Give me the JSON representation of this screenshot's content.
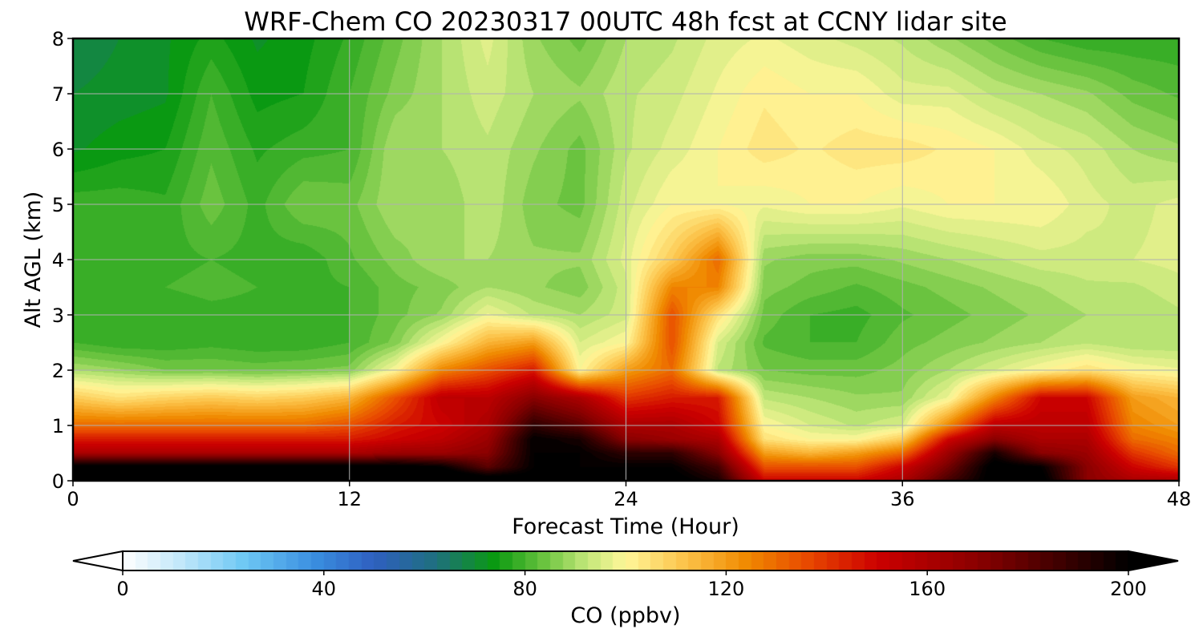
{
  "chart_data": {
    "type": "heatmap",
    "title": "WRF-Chem CO  20230317 00UTC 48h fcst at CCNY lidar site",
    "xlabel": "Forecast Time (Hour)",
    "ylabel": "Alt AGL (km)",
    "xlim": [
      0,
      48
    ],
    "ylim": [
      0,
      8
    ],
    "x_ticks": [
      "0",
      "12",
      "24",
      "36",
      "48"
    ],
    "y_ticks": [
      "0",
      "1",
      "2",
      "3",
      "4",
      "5",
      "6",
      "7",
      "8"
    ],
    "grid": true,
    "x_hours": [
      0,
      2,
      4,
      6,
      8,
      10,
      12,
      14,
      16,
      18,
      20,
      22,
      24,
      26,
      28,
      30,
      32,
      34,
      36,
      38,
      40,
      42,
      44,
      46,
      48
    ],
    "altitudes_km": [
      0,
      0.25,
      0.5,
      0.75,
      1,
      1.5,
      2,
      2.5,
      3,
      3.5,
      4,
      5,
      6,
      7,
      8
    ],
    "values": [
      [
        215,
        215,
        215,
        215,
        215,
        215,
        215,
        215,
        215,
        210,
        205,
        205,
        205,
        205,
        195,
        150,
        150,
        150,
        160,
        185,
        205,
        205,
        170,
        160,
        160
      ],
      [
        205,
        205,
        205,
        205,
        205,
        205,
        205,
        205,
        200,
        180,
        200,
        200,
        200,
        200,
        185,
        135,
        135,
        135,
        150,
        175,
        205,
        200,
        170,
        150,
        140
      ],
      [
        160,
        160,
        160,
        160,
        160,
        160,
        160,
        165,
        165,
        170,
        200,
        200,
        190,
        190,
        170,
        120,
        115,
        120,
        130,
        165,
        195,
        170,
        165,
        140,
        130
      ],
      [
        145,
        145,
        145,
        145,
        145,
        145,
        145,
        150,
        155,
        165,
        200,
        195,
        170,
        165,
        160,
        105,
        100,
        100,
        110,
        150,
        170,
        160,
        160,
        130,
        125
      ],
      [
        130,
        130,
        130,
        130,
        130,
        130,
        135,
        145,
        150,
        160,
        190,
        180,
        160,
        160,
        150,
        100,
        95,
        92,
        95,
        125,
        155,
        155,
        155,
        125,
        120
      ],
      [
        110,
        105,
        108,
        110,
        108,
        110,
        115,
        135,
        155,
        155,
        170,
        160,
        140,
        145,
        145,
        92,
        90,
        88,
        88,
        98,
        125,
        150,
        150,
        120,
        115
      ],
      [
        90,
        88,
        85,
        85,
        84,
        85,
        86,
        100,
        125,
        135,
        145,
        100,
        120,
        130,
        92,
        85,
        84,
        84,
        86,
        90,
        95,
        100,
        105,
        100,
        98
      ],
      [
        80,
        78,
        78,
        79,
        78,
        78,
        80,
        86,
        100,
        115,
        120,
        95,
        100,
        135,
        95,
        82,
        80,
        80,
        84,
        86,
        88,
        90,
        92,
        90,
        90
      ],
      [
        80,
        79,
        78,
        79,
        79,
        78,
        80,
        84,
        88,
        98,
        92,
        90,
        94,
        135,
        105,
        84,
        80,
        79,
        82,
        84,
        86,
        88,
        90,
        90,
        92
      ],
      [
        80,
        78,
        80,
        81,
        80,
        79,
        80,
        84,
        86,
        90,
        88,
        86,
        94,
        125,
        125,
        86,
        84,
        82,
        84,
        86,
        88,
        90,
        92,
        92,
        94
      ],
      [
        79,
        78,
        79,
        80,
        79,
        78,
        82,
        86,
        90,
        90,
        88,
        88,
        96,
        110,
        130,
        88,
        86,
        86,
        88,
        90,
        92,
        94,
        94,
        95,
        96
      ],
      [
        79,
        79,
        78,
        84,
        79,
        85,
        84,
        90,
        88,
        92,
        86,
        84,
        94,
        100,
        100,
        98,
        100,
        100,
        98,
        100,
        100,
        100,
        96,
        94,
        96
      ],
      [
        72,
        74,
        75,
        82,
        77,
        79,
        80,
        90,
        90,
        92,
        88,
        84,
        92,
        96,
        100,
        104,
        102,
        104,
        104,
        102,
        100,
        96,
        94,
        90,
        88
      ],
      [
        70,
        71,
        72,
        80,
        74,
        75,
        80,
        86,
        90,
        94,
        90,
        88,
        92,
        94,
        98,
        102,
        100,
        100,
        96,
        96,
        92,
        90,
        88,
        84,
        82
      ],
      [
        68,
        70,
        72,
        76,
        72,
        74,
        78,
        84,
        90,
        96,
        88,
        84,
        90,
        92,
        96,
        98,
        96,
        94,
        92,
        88,
        84,
        80,
        78,
        78,
        78
      ]
    ],
    "colorbar": {
      "label": "CO  (ppbv)",
      "min": 0,
      "max": 200,
      "ticks": [
        "0",
        "40",
        "80",
        "120",
        "160",
        "200"
      ],
      "extend": "both",
      "stops": [
        {
          "v": 0,
          "c": "#ffffff"
        },
        {
          "v": 12,
          "c": "#bfe6fa"
        },
        {
          "v": 24,
          "c": "#6ec8f4"
        },
        {
          "v": 38,
          "c": "#3a8fe0"
        },
        {
          "v": 50,
          "c": "#2f5fc0"
        },
        {
          "v": 62,
          "c": "#1f6f80"
        },
        {
          "v": 74,
          "c": "#0a9a10"
        },
        {
          "v": 84,
          "c": "#6cc440"
        },
        {
          "v": 92,
          "c": "#c0e678"
        },
        {
          "v": 100,
          "c": "#fff799"
        },
        {
          "v": 112,
          "c": "#fcc248"
        },
        {
          "v": 124,
          "c": "#f08a00"
        },
        {
          "v": 136,
          "c": "#e84a00"
        },
        {
          "v": 150,
          "c": "#cc0000"
        },
        {
          "v": 170,
          "c": "#8a0000"
        },
        {
          "v": 186,
          "c": "#400000"
        },
        {
          "v": 200,
          "c": "#000000"
        }
      ]
    }
  }
}
